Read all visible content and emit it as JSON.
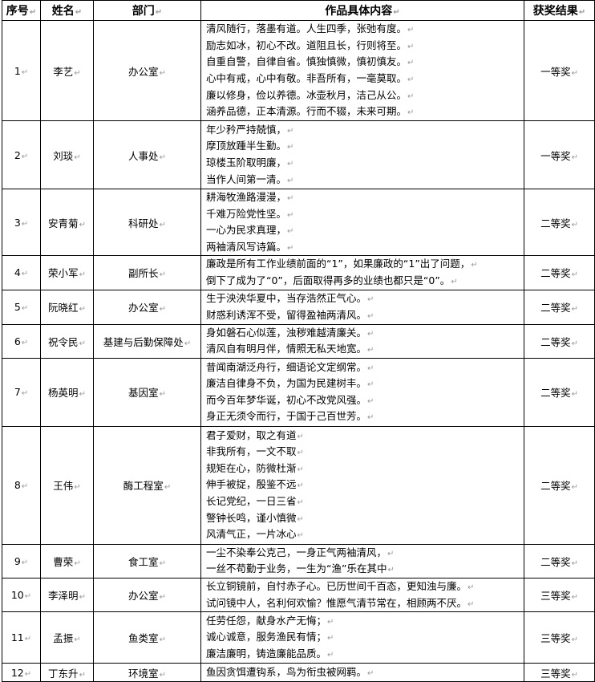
{
  "headers": [
    "序号",
    "姓名",
    "部门",
    "作品具体内容",
    "获奖结果"
  ],
  "rows": [
    {
      "no": "1",
      "name": "李艺",
      "dept": "办公室",
      "content": [
        "清风随行，落墨有道。人生四季，张弛有度。",
        "励志如冰，初心不改。道阻且长，行则将至。",
        "自重自警，自律自省。慎独慎微，慎初慎友。",
        "心中有戒，心中有敬。非吾所有，一毫莫取。",
        "廉以修身，俭以养德。冰壶秋月，洁己从公。",
        "涵养品德，正本清源。行而不辍，未来可期。"
      ],
      "award": "一等奖"
    },
    {
      "no": "2",
      "name": "刘琰",
      "dept": "人事处",
      "content": [
        "年少矜严持兢慎，",
        "摩顶放踵半生勤。",
        "琼楼玉阶取明廉，",
        "当作人间第一清。"
      ],
      "award": "一等奖"
    },
    {
      "no": "3",
      "name": "安青菊",
      "dept": "科研处",
      "content": [
        "耕海牧渔路漫漫，",
        "千难万险党性坚。",
        "一心为民求真理，",
        "两袖清风写诗篇。"
      ],
      "award": "二等奖"
    },
    {
      "no": "4",
      "name": "荣小军",
      "dept": "副所长",
      "content": [
        "廉政是所有工作业绩前面的“1”，如果廉政的“1”出了问题，",
        "倒下了成为了“0”，后面取得再多的业绩也都只是“0”。"
      ],
      "award": "二等奖"
    },
    {
      "no": "5",
      "name": "阮晓红",
      "dept": "办公室",
      "content": [
        "生于泱泱华夏中，当存浩然正气心。",
        "财惑利诱浑不受，留得盈袖两清风。"
      ],
      "award": "二等奖"
    },
    {
      "no": "6",
      "name": "祝令民",
      "dept": "基建与后勤保障处",
      "content": [
        "身如磐石心似莲，浊秽难越清廉关。",
        "清风自有明月伴，情照无私天地宽。"
      ],
      "award": "二等奖"
    },
    {
      "no": "7",
      "name": "杨英明",
      "dept": "基因室",
      "content": [
        "昔闻南湖泛舟行，细语论文定纲常。",
        "廉洁自律身不负，为国为民建树丰。",
        "而今百年梦华诞，初心不改党风强。",
        "身正无须令而行，于国于己百世芳。"
      ],
      "award": "二等奖"
    },
    {
      "no": "8",
      "name": "王伟",
      "dept": "酶工程室",
      "content": [
        "君子爱财，取之有道",
        "非我所有，一文不取",
        "规矩在心，防微杜渐",
        "伸手被捉，殷鉴不远",
        "长记党纪，一日三省",
        "警钟长鸣，谨小慎微",
        "风清气正，一片冰心"
      ],
      "award": "二等奖"
    },
    {
      "no": "9",
      "name": "曹荣",
      "dept": "食工室",
      "content": [
        "一尘不染奉公克己，一身正气两袖清风，",
        "一丝不苟勤于业务，一生为“渔”乐在其中"
      ],
      "award": "二等奖"
    },
    {
      "no": "10",
      "name": "李泽明",
      "dept": "办公室",
      "content": [
        "长立铜镜前，自忖赤子心。已历世间千百态，更知浊与廉。",
        "试问镜中人，名利何欢愉？惟愿气清节常在，相顾两不厌。"
      ],
      "award": "三等奖"
    },
    {
      "no": "11",
      "name": "孟振",
      "dept": "鱼类室",
      "content": [
        "任劳任怨，献身水产无悔；",
        "诚心诚意，服务渔民有情；",
        "廉洁廉明，铸造廉能品质。"
      ],
      "award": "三等奖"
    },
    {
      "no": "12",
      "name": "丁东升",
      "dept": "环境室",
      "content": [
        "鱼因贪饵遭钩系，鸟为衔虫被网羁。"
      ],
      "award": "三等奖"
    }
  ]
}
